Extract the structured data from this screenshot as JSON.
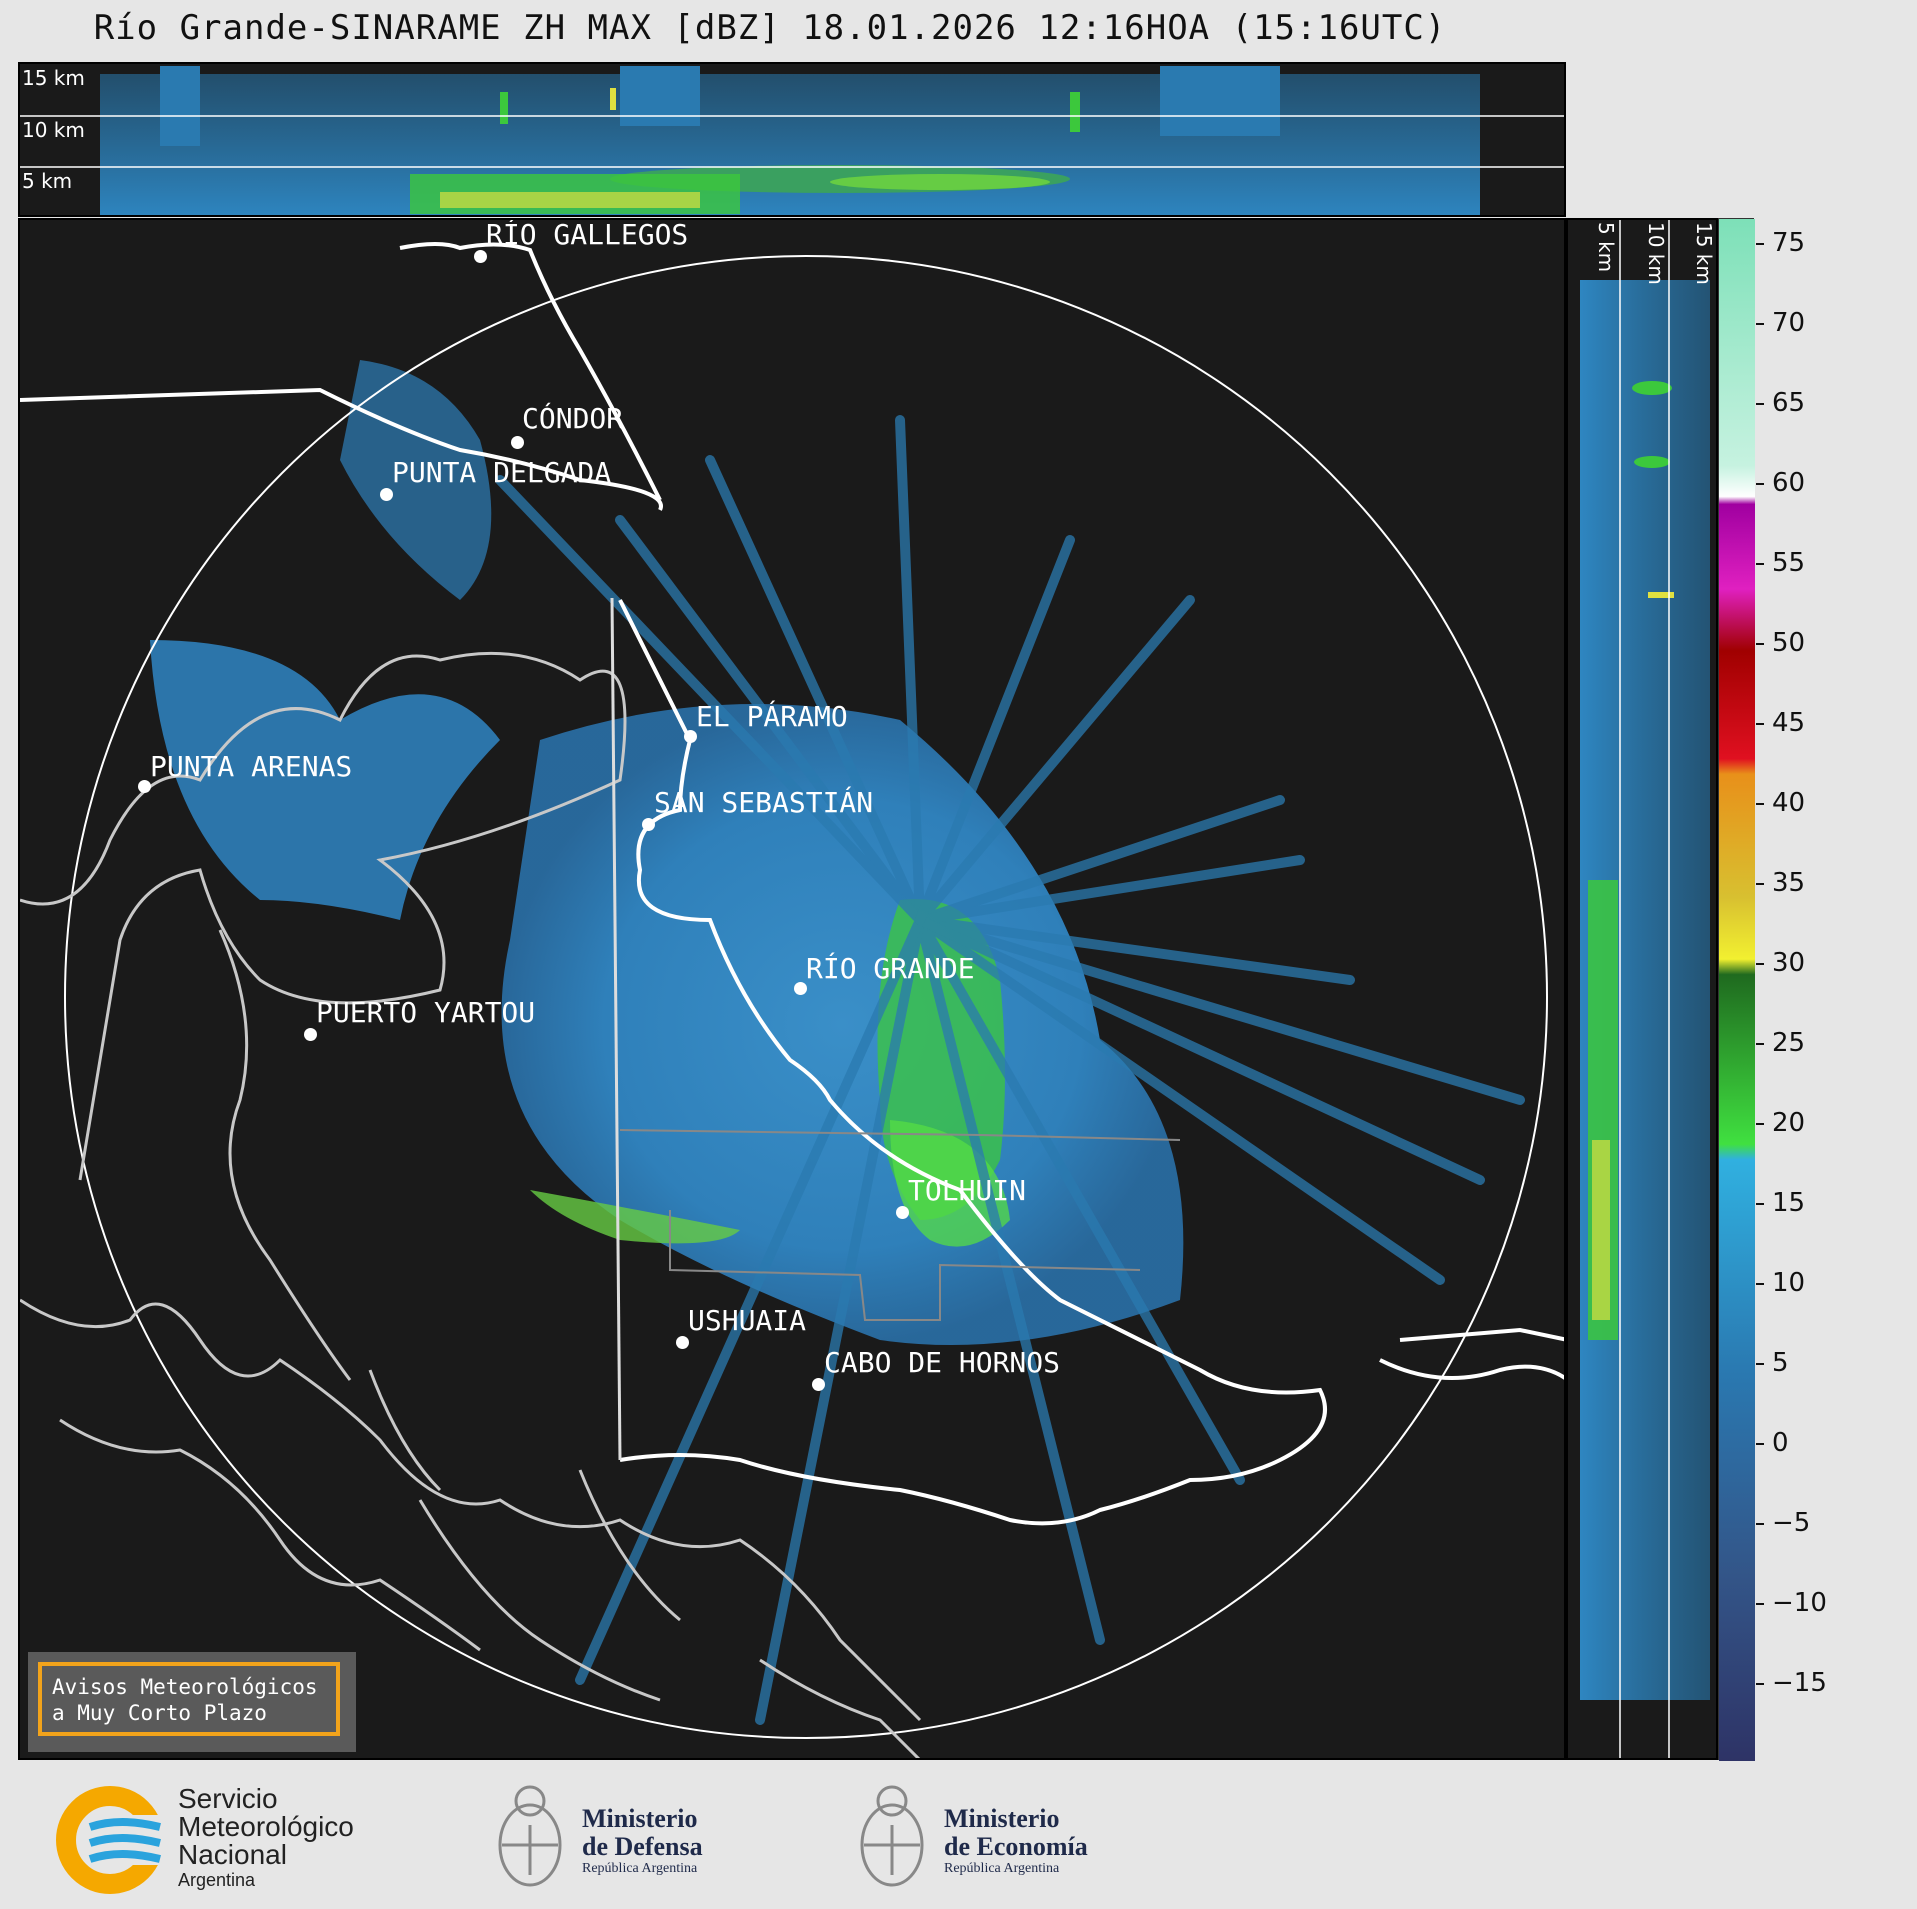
{
  "title": "Río Grande-SINARAME ZH MAX [dBZ] 18.01.2026 12:16HOA (15:16UTC)",
  "top_panel": {
    "heights": [
      "15 km",
      "10 km",
      "5 km"
    ]
  },
  "side_panel": {
    "heights": [
      "5 km",
      "10 km",
      "15 km"
    ]
  },
  "cities": [
    {
      "name": "RÍO GALLEGOS"
    },
    {
      "name": "CÓNDOR"
    },
    {
      "name": "PUNTA DELGADA"
    },
    {
      "name": "EL PÁRAMO"
    },
    {
      "name": "SAN SEBASTIÁN"
    },
    {
      "name": "PUNTA ARENAS"
    },
    {
      "name": "RÍO GRANDE"
    },
    {
      "name": "PUERTO YARTOU"
    },
    {
      "name": "TOLHUIN"
    },
    {
      "name": "USHUAIA"
    },
    {
      "name": "CABO DE HORNOS"
    }
  ],
  "colorbar": {
    "ticks": [
      "75",
      "70",
      "65",
      "60",
      "55",
      "50",
      "45",
      "40",
      "35",
      "30",
      "25",
      "20",
      "15",
      "10",
      "5",
      "0",
      "−5",
      "−10",
      "−15"
    ],
    "range": [
      -19,
      77
    ]
  },
  "alert": {
    "line1": "Avisos Meteorológicos",
    "line2": "a Muy Corto Plazo"
  },
  "logos": {
    "smn": {
      "line1": "Servicio",
      "line2": "Meteorológico",
      "line3": "Nacional",
      "line4": "Argentina"
    },
    "defensa": {
      "line1": "Ministerio",
      "line2": "de Defensa",
      "line3": "República Argentina"
    },
    "economia": {
      "line1": "Ministerio",
      "line2": "de Economía",
      "line3": "República Argentina"
    }
  },
  "colors": {
    "background": "#1a1a1a",
    "echo_light": "#3a8fc8",
    "echo_mid": "#2a7ab0",
    "echo_green": "#3cc83c",
    "alert_border": "#f2a31b"
  }
}
